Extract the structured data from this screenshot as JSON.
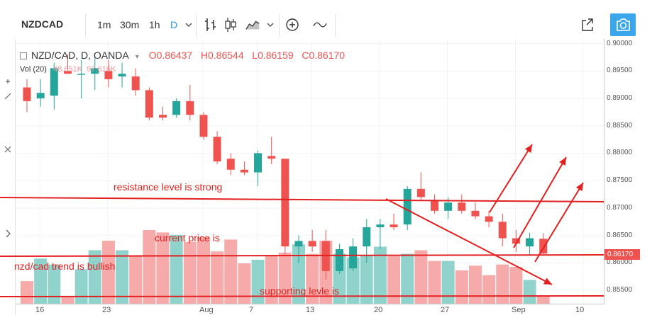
{
  "toolbar": {
    "symbol": "NZDCAD",
    "intervals": [
      "1m",
      "30m",
      "1h",
      "D"
    ],
    "active_interval": "D",
    "icons": [
      "chevron-down-icon",
      "bar-chart-icon",
      "candlestick-icon",
      "area-chart-icon",
      "chevron-down-icon",
      "add-indicator-icon",
      "compare-icon",
      "fullscreen-icon",
      "camera-icon"
    ]
  },
  "legend": {
    "title": "NZD/CAD, D, OANDA",
    "open": "O0.86437",
    "high": "H0.86544",
    "low": "L0.86159",
    "close": "C0.86170",
    "volume_label": "Vol (20)",
    "volume_value": "48.651K",
    "volume_ma": "97.616K"
  },
  "price_axis": {
    "labels": [
      "0.90000",
      "0.89500",
      "0.89000",
      "0.88500",
      "0.88000",
      "0.87500",
      "0.87000",
      "0.86500",
      "0.86000",
      "0.85500"
    ],
    "current_price": "0.86170"
  },
  "time_axis": {
    "labels": [
      "16",
      "23",
      "Aug",
      "7",
      "13",
      "20",
      "27",
      "Sep",
      "10"
    ]
  },
  "annotations": {
    "resistance": "resistance level is strong",
    "current_price": "current price is",
    "trend": "nzd/cad trend is bullish",
    "support": "supporting levle is"
  },
  "colors": {
    "up": "#26a69a",
    "down": "#ef5350",
    "annotation": "#e31f1f",
    "accent": "#2196f3"
  },
  "chart_data": {
    "type": "candlestick",
    "ylim": [
      0.8545,
      0.9002
    ],
    "candles": [
      {
        "o": 0.892,
        "h": 0.8935,
        "l": 0.8875,
        "c": 0.8895
      },
      {
        "o": 0.89,
        "h": 0.8935,
        "l": 0.8885,
        "c": 0.891
      },
      {
        "o": 0.8905,
        "h": 0.8965,
        "l": 0.888,
        "c": 0.8955
      },
      {
        "o": 0.895,
        "h": 0.898,
        "l": 0.8945,
        "c": 0.8945
      },
      {
        "o": 0.8945,
        "h": 0.897,
        "l": 0.89,
        "c": 0.8945
      },
      {
        "o": 0.8945,
        "h": 0.898,
        "l": 0.8915,
        "c": 0.8955
      },
      {
        "o": 0.895,
        "h": 0.897,
        "l": 0.892,
        "c": 0.8935
      },
      {
        "o": 0.894,
        "h": 0.8965,
        "l": 0.892,
        "c": 0.8945
      },
      {
        "o": 0.894,
        "h": 0.8955,
        "l": 0.8905,
        "c": 0.8915
      },
      {
        "o": 0.8915,
        "h": 0.892,
        "l": 0.886,
        "c": 0.8865
      },
      {
        "o": 0.887,
        "h": 0.8885,
        "l": 0.886,
        "c": 0.8865
      },
      {
        "o": 0.887,
        "h": 0.89,
        "l": 0.8865,
        "c": 0.8895
      },
      {
        "o": 0.8895,
        "h": 0.8925,
        "l": 0.886,
        "c": 0.887
      },
      {
        "o": 0.887,
        "h": 0.8875,
        "l": 0.8825,
        "c": 0.883
      },
      {
        "o": 0.883,
        "h": 0.884,
        "l": 0.878,
        "c": 0.8785
      },
      {
        "o": 0.879,
        "h": 0.88,
        "l": 0.876,
        "c": 0.877
      },
      {
        "o": 0.877,
        "h": 0.8785,
        "l": 0.876,
        "c": 0.8765
      },
      {
        "o": 0.8765,
        "h": 0.8805,
        "l": 0.874,
        "c": 0.88
      },
      {
        "o": 0.8795,
        "h": 0.883,
        "l": 0.878,
        "c": 0.879
      },
      {
        "o": 0.879,
        "h": 0.879,
        "l": 0.8615,
        "c": 0.863
      },
      {
        "o": 0.863,
        "h": 0.865,
        "l": 0.86,
        "c": 0.864
      },
      {
        "o": 0.864,
        "h": 0.866,
        "l": 0.862,
        "c": 0.863
      },
      {
        "o": 0.864,
        "h": 0.866,
        "l": 0.857,
        "c": 0.8585
      },
      {
        "o": 0.8585,
        "h": 0.8635,
        "l": 0.858,
        "c": 0.8625
      },
      {
        "o": 0.859,
        "h": 0.8645,
        "l": 0.8585,
        "c": 0.863
      },
      {
        "o": 0.863,
        "h": 0.868,
        "l": 0.86,
        "c": 0.8665
      },
      {
        "o": 0.8665,
        "h": 0.868,
        "l": 0.8625,
        "c": 0.867
      },
      {
        "o": 0.867,
        "h": 0.869,
        "l": 0.866,
        "c": 0.8665
      },
      {
        "o": 0.867,
        "h": 0.874,
        "l": 0.866,
        "c": 0.8735
      },
      {
        "o": 0.8735,
        "h": 0.8765,
        "l": 0.8715,
        "c": 0.872
      },
      {
        "o": 0.8715,
        "h": 0.8725,
        "l": 0.869,
        "c": 0.8695
      },
      {
        "o": 0.8695,
        "h": 0.872,
        "l": 0.868,
        "c": 0.871
      },
      {
        "o": 0.871,
        "h": 0.8725,
        "l": 0.869,
        "c": 0.8695
      },
      {
        "o": 0.8695,
        "h": 0.871,
        "l": 0.868,
        "c": 0.8685
      },
      {
        "o": 0.8685,
        "h": 0.8695,
        "l": 0.8665,
        "c": 0.8675
      },
      {
        "o": 0.8675,
        "h": 0.869,
        "l": 0.863,
        "c": 0.8645
      },
      {
        "o": 0.8645,
        "h": 0.866,
        "l": 0.862,
        "c": 0.8635
      },
      {
        "o": 0.863,
        "h": 0.8655,
        "l": 0.8615,
        "c": 0.8645
      },
      {
        "o": 0.8644,
        "h": 0.8654,
        "l": 0.8616,
        "c": 0.8617
      }
    ],
    "volumes": [
      0.19,
      0.38,
      0.33,
      0.06,
      0.29,
      0.45,
      0.53,
      0.45,
      0.4,
      0.62,
      0.6,
      0.58,
      0.52,
      0.56,
      0.44,
      0.54,
      0.34,
      0.37,
      0.41,
      0.43,
      0.5,
      0.42,
      0.53,
      0.42,
      0.39,
      0.41,
      0.48,
      0.4,
      0.42,
      0.45,
      0.36,
      0.36,
      0.28,
      0.32,
      0.24,
      0.33,
      0.31,
      0.2,
      0.06
    ],
    "lines": [
      {
        "name": "resistance",
        "y": 0.8723
      },
      {
        "name": "current",
        "y": 0.8617
      },
      {
        "name": "support",
        "y": 0.8551
      }
    ]
  }
}
